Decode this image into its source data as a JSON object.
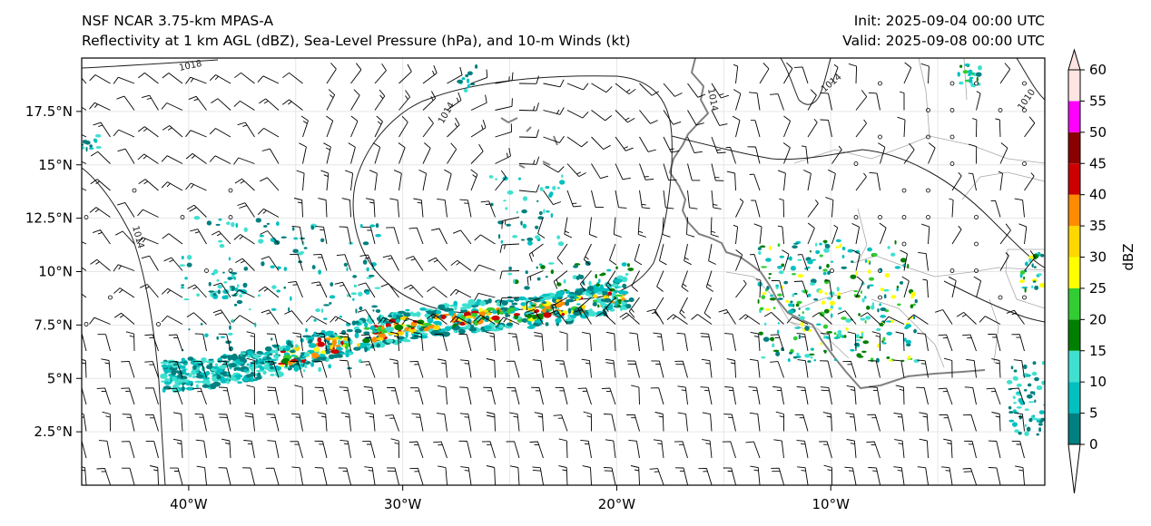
{
  "titles": {
    "left_line1": "NSF NCAR 3.75-km MPAS-A",
    "left_line2": "Reflectivity at 1 km AGL (dBZ), Sea-Level Pressure (hPa), and 10-m Winds (kt)",
    "right_line1": "Init: 2025-09-04 00:00 UTC",
    "right_line2": "Valid: 2025-09-08 00:00 UTC"
  },
  "map": {
    "lon_range": [
      -45,
      0
    ],
    "lat_range": [
      0,
      20
    ],
    "lon_ticks": [
      {
        "value": -40,
        "label": "40°W"
      },
      {
        "value": -30,
        "label": "30°W"
      },
      {
        "value": -20,
        "label": "20°W"
      },
      {
        "value": -10,
        "label": "10°W"
      }
    ],
    "lat_ticks": [
      {
        "value": 2.5,
        "label": "2.5°N"
      },
      {
        "value": 5,
        "label": "5°N"
      },
      {
        "value": 7.5,
        "label": "7.5°N"
      },
      {
        "value": 10,
        "label": "10°N"
      },
      {
        "value": 12.5,
        "label": "12.5°N"
      },
      {
        "value": 15,
        "label": "15°N"
      },
      {
        "value": 17.5,
        "label": "17.5°N"
      }
    ],
    "pressure_labels": [
      "1018",
      "1014",
      "1014",
      "1014",
      "1010",
      "1014"
    ]
  },
  "colorbar": {
    "label": "dBZ",
    "ticks": [
      "0",
      "5",
      "10",
      "15",
      "20",
      "25",
      "30",
      "35",
      "40",
      "45",
      "50",
      "55",
      "60"
    ],
    "colors": [
      "#008080",
      "#00c0c0",
      "#40e0d0",
      "#008000",
      "#32cd32",
      "#ffff00",
      "#ffd700",
      "#ff8c00",
      "#cc0000",
      "#8b0000",
      "#ff00ff",
      "#ffe4e1"
    ],
    "extend_colors": {
      "low": "#ffffff",
      "high": "#ffe4e1"
    }
  },
  "colors": {
    "coastline": "#808080",
    "border": "#a0a0a0",
    "isobar": "#222222"
  }
}
